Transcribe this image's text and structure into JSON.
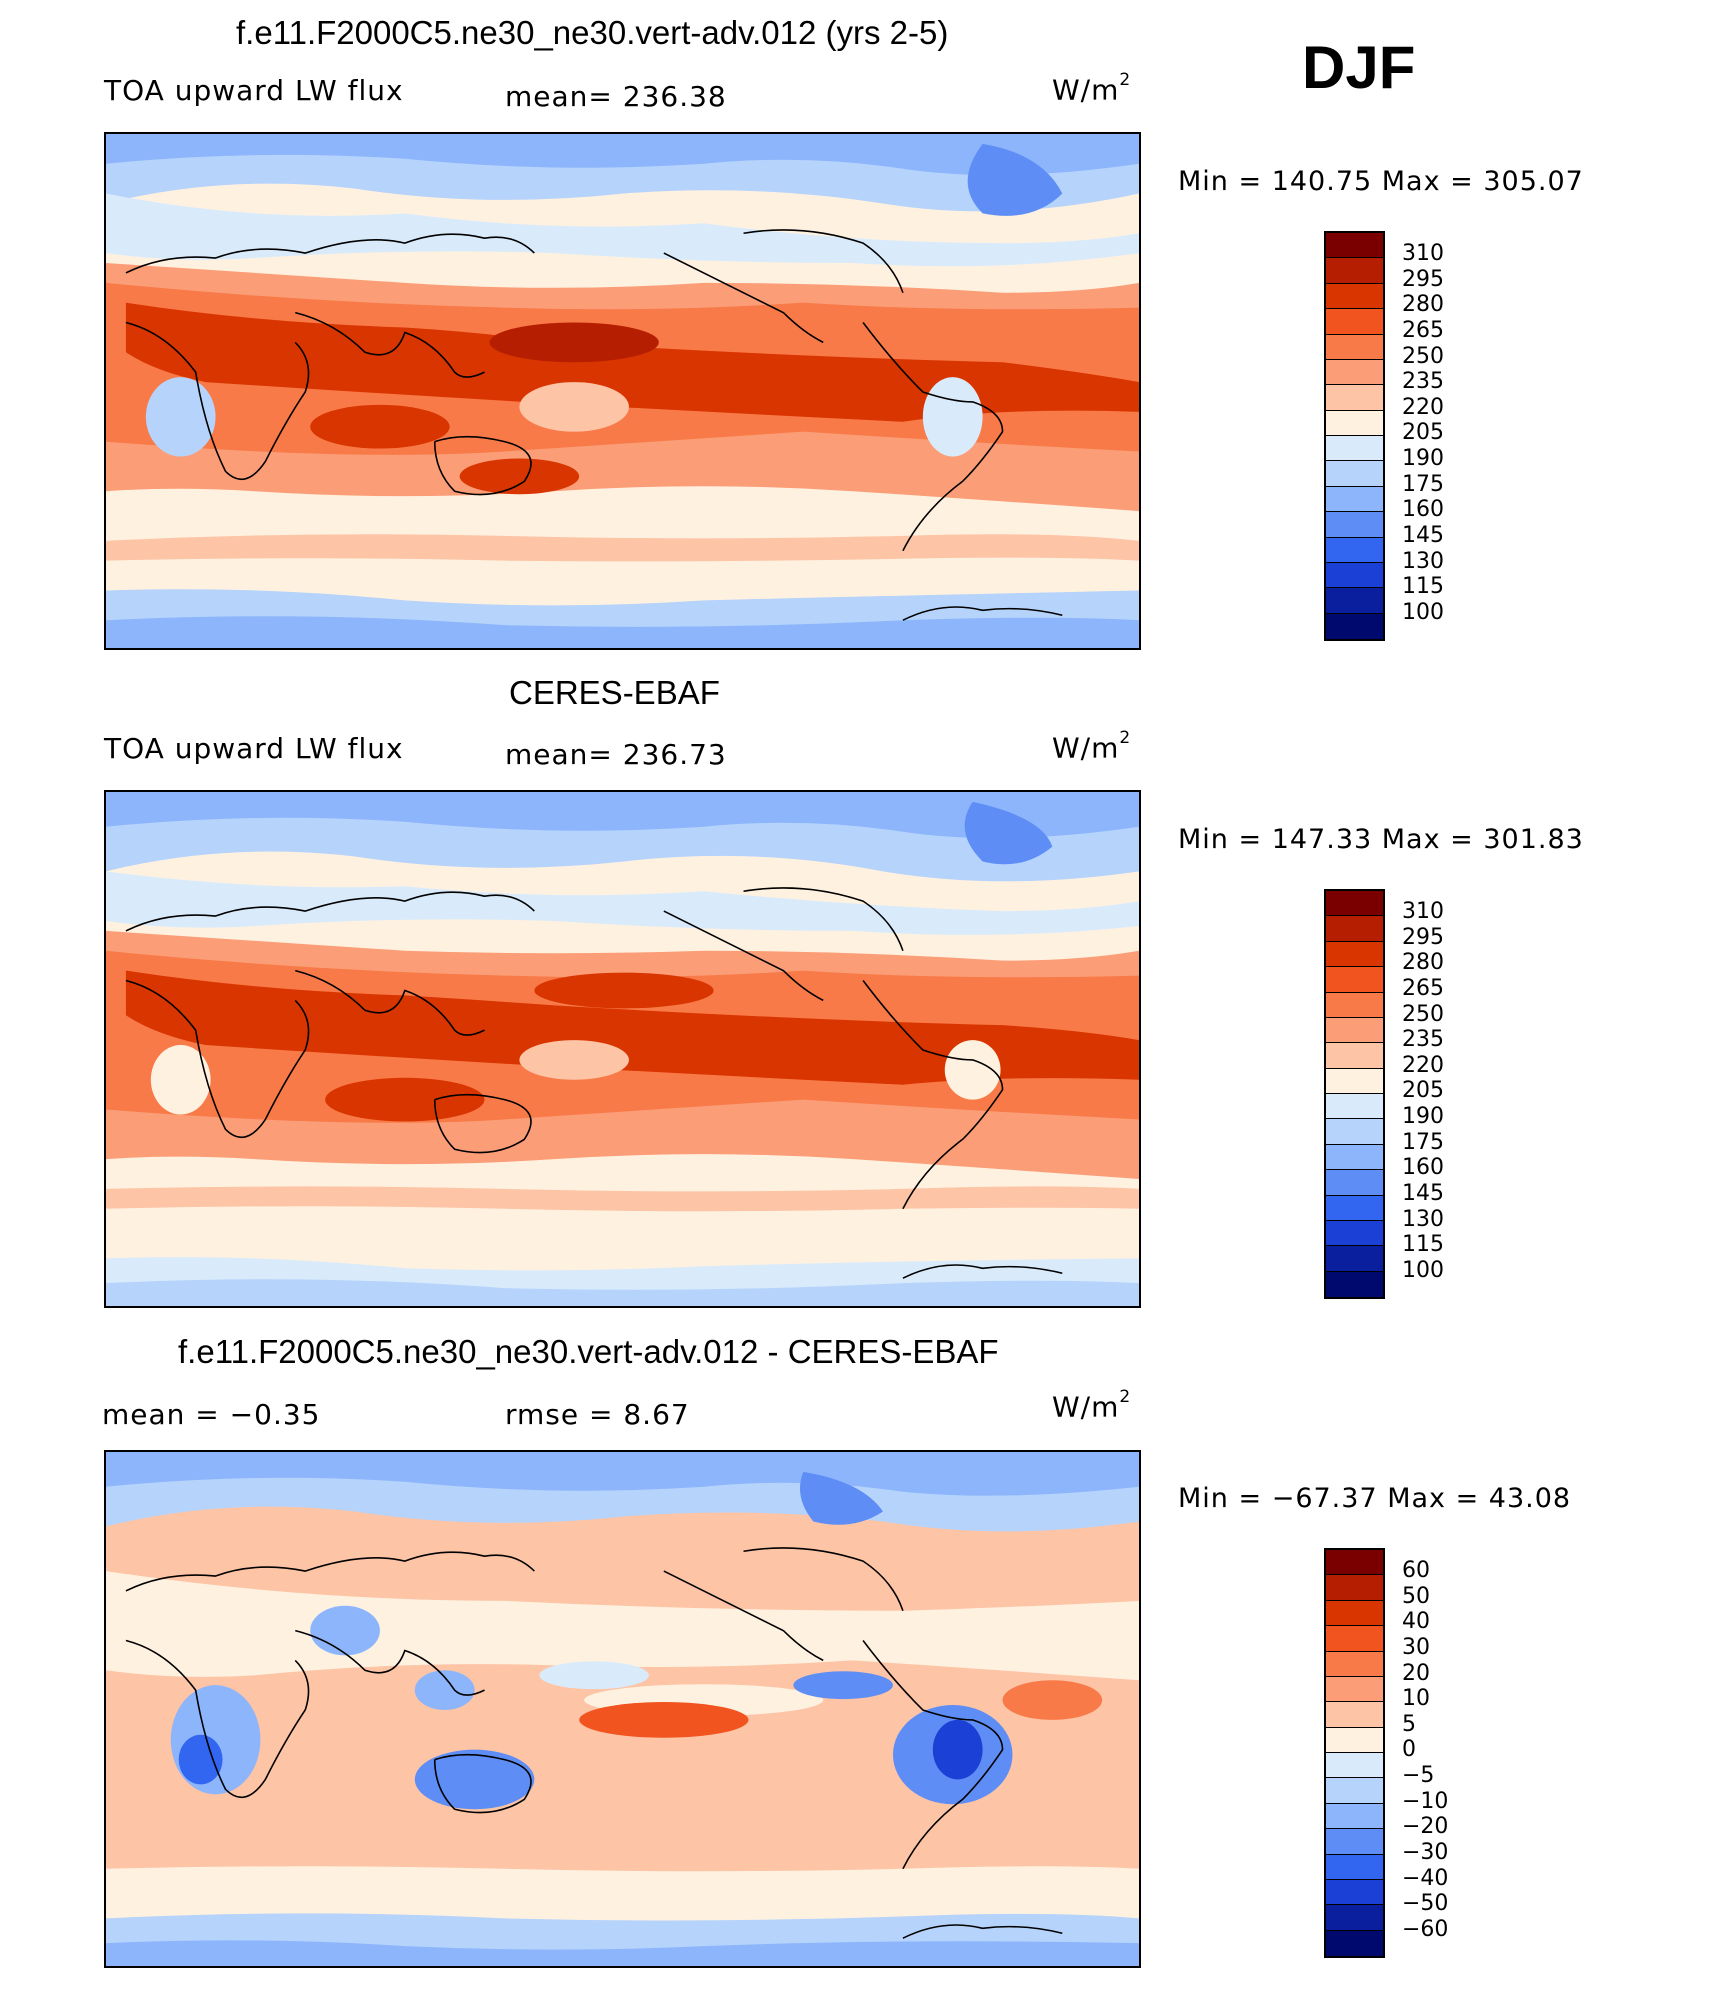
{
  "season": "DJF",
  "panels": [
    {
      "title": "f.e11.F2000C5.ne30_ne30.vert-adv.012 (yrs 2-5)",
      "left": "TOA upward LW flux",
      "center": "mean=  236.38",
      "units": "W/m",
      "units_sup": "2",
      "minmax": "Min  =  140.75  Max  =  305.07",
      "colorbar": {
        "labels": [
          "310",
          "295",
          "280",
          "265",
          "250",
          "235",
          "220",
          "205",
          "190",
          "175",
          "160",
          "145",
          "130",
          "115",
          "100"
        ]
      }
    },
    {
      "title": "CERES-EBAF",
      "left": "TOA upward LW flux",
      "center": "mean=  236.73",
      "units": "W/m",
      "units_sup": "2",
      "minmax": "Min  =  147.33  Max  =  301.83",
      "colorbar": {
        "labels": [
          "310",
          "295",
          "280",
          "265",
          "250",
          "235",
          "220",
          "205",
          "190",
          "175",
          "160",
          "145",
          "130",
          "115",
          "100"
        ]
      }
    },
    {
      "title": "f.e11.F2000C5.ne30_ne30.vert-adv.012 - CERES-EBAF",
      "left": "mean  =     −0.35",
      "center": "rmse  =      8.67",
      "units": "W/m",
      "units_sup": "2",
      "minmax": "Min  =  −67.37  Max  =     43.08",
      "colorbar": {
        "labels": [
          "60",
          "50",
          "40",
          "30",
          "20",
          "10",
          "5",
          "0",
          "−5",
          "−10",
          "−20",
          "−30",
          "−40",
          "−50",
          "−60"
        ]
      }
    }
  ],
  "colors": {
    "abs_scale": [
      "#7a0000",
      "#b51e00",
      "#d93500",
      "#f25420",
      "#f87a48",
      "#fb9e77",
      "#fdc4a6",
      "#fff1e0",
      "#d9ebfb",
      "#b5d3fb",
      "#8cb5fb",
      "#5e8ef5",
      "#3366f0",
      "#1a40d6",
      "#0a1f9e",
      "#000a6e"
    ],
    "diff_scale": [
      "#7a0000",
      "#b51e00",
      "#d93500",
      "#f25420",
      "#f87a48",
      "#fb9e77",
      "#fdc4a6",
      "#fff1e0",
      "#d9ebfb",
      "#b5d3fb",
      "#8cb5fb",
      "#5e8ef5",
      "#3366f0",
      "#1a40d6",
      "#0a1f9e",
      "#000a6e"
    ]
  }
}
